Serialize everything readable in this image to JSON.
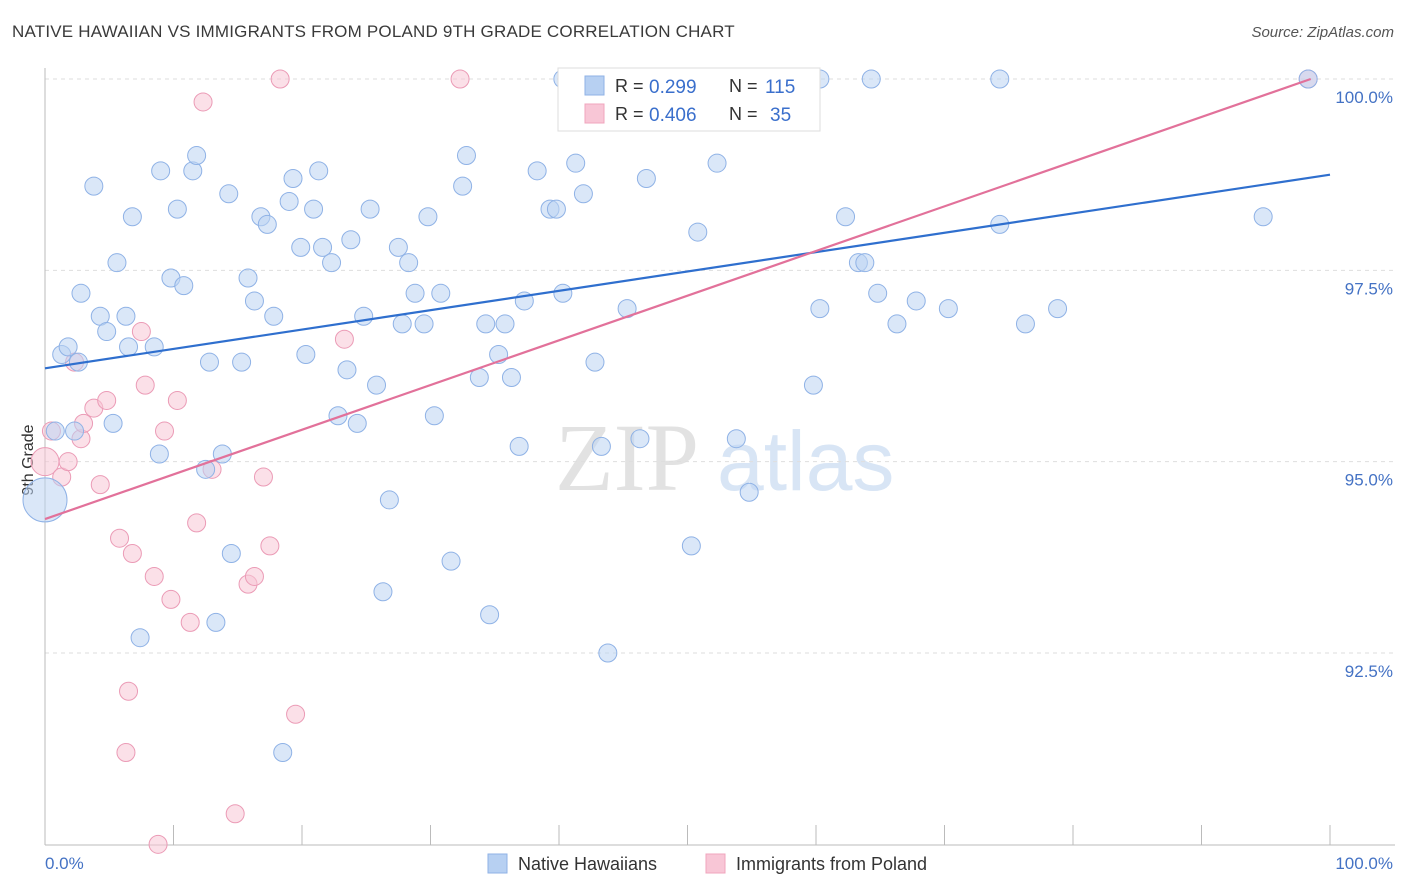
{
  "title": "NATIVE HAWAIIAN VS IMMIGRANTS FROM POLAND 9TH GRADE CORRELATION CHART",
  "source": "Source: ZipAtlas.com",
  "watermark": {
    "zip": "ZIP",
    "atlas": "atlas"
  },
  "legend_top": [
    {
      "r_label": "R =",
      "r_value": "0.299",
      "n_label": "N =",
      "n_value": "115"
    },
    {
      "r_label": "R =",
      "r_value": "0.406",
      "n_label": "N =",
      "n_value": "35"
    }
  ],
  "legend_bottom": [
    "Native Hawaiians",
    "Immigrants from Poland"
  ],
  "chart_data": {
    "type": "scatter",
    "xlabel": "",
    "ylabel": "9th Grade",
    "xlim": [
      0,
      100
    ],
    "ylim": [
      89.9,
      100.5
    ],
    "x_tick_labels": [
      "0.0%",
      "100.0%"
    ],
    "y_ticks": [
      100.0,
      97.5,
      95.0,
      92.5
    ],
    "y_tick_labels": [
      "100.0%",
      "97.5%",
      "95.0%",
      "92.5%"
    ],
    "grid": true,
    "colors": {
      "blue": "#9dbfec",
      "blue_line": "#2f6fce",
      "pink": "#f2a7bf",
      "pink_line": "#e2719a"
    },
    "series": [
      {
        "name": "Native Hawaiians",
        "color": "#9dbfec",
        "trend": {
          "x": [
            0,
            100
          ],
          "y": [
            96.22,
            98.75
          ]
        },
        "points": [
          [
            0.0,
            94.5,
            22
          ],
          [
            0.8,
            95.4,
            9
          ],
          [
            1.3,
            96.4,
            9
          ],
          [
            1.8,
            96.5,
            9
          ],
          [
            2.3,
            95.4,
            9
          ],
          [
            2.6,
            96.3,
            9
          ],
          [
            2.8,
            97.2,
            9
          ],
          [
            3.8,
            98.6,
            9
          ],
          [
            4.3,
            96.9,
            9
          ],
          [
            4.8,
            96.7,
            9
          ],
          [
            5.3,
            95.5,
            9
          ],
          [
            5.6,
            97.6,
            9
          ],
          [
            6.3,
            96.9,
            9
          ],
          [
            6.5,
            96.5,
            9
          ],
          [
            6.8,
            98.2,
            9
          ],
          [
            7.4,
            92.7,
            9
          ],
          [
            8.5,
            96.5,
            9
          ],
          [
            8.9,
            95.1,
            9
          ],
          [
            9.0,
            98.8,
            9
          ],
          [
            9.8,
            97.4,
            9
          ],
          [
            10.3,
            98.3,
            9
          ],
          [
            10.8,
            97.3,
            9
          ],
          [
            11.5,
            98.8,
            9
          ],
          [
            11.8,
            99.0,
            9
          ],
          [
            12.5,
            94.9,
            9
          ],
          [
            12.8,
            96.3,
            9
          ],
          [
            13.3,
            92.9,
            9
          ],
          [
            13.8,
            95.1,
            9
          ],
          [
            14.3,
            98.5,
            9
          ],
          [
            14.5,
            93.8,
            9
          ],
          [
            15.3,
            96.3,
            9
          ],
          [
            15.8,
            97.4,
            9
          ],
          [
            16.3,
            97.1,
            9
          ],
          [
            16.8,
            98.2,
            9
          ],
          [
            17.3,
            98.1,
            9
          ],
          [
            17.8,
            96.9,
            9
          ],
          [
            18.5,
            91.2,
            9
          ],
          [
            19.0,
            98.4,
            9
          ],
          [
            19.3,
            98.7,
            9
          ],
          [
            19.9,
            97.8,
            9
          ],
          [
            20.3,
            96.4,
            9
          ],
          [
            20.9,
            98.3,
            9
          ],
          [
            21.3,
            98.8,
            9
          ],
          [
            21.6,
            97.8,
            9
          ],
          [
            22.3,
            97.6,
            9
          ],
          [
            22.8,
            95.6,
            9
          ],
          [
            23.5,
            96.2,
            9
          ],
          [
            23.8,
            97.9,
            9
          ],
          [
            24.3,
            95.5,
            9
          ],
          [
            24.8,
            96.9,
            9
          ],
          [
            25.3,
            98.3,
            9
          ],
          [
            25.8,
            96.0,
            9
          ],
          [
            26.3,
            93.3,
            9
          ],
          [
            26.8,
            94.5,
            9
          ],
          [
            27.5,
            97.8,
            9
          ],
          [
            27.8,
            96.8,
            9
          ],
          [
            28.3,
            97.6,
            9
          ],
          [
            28.8,
            97.2,
            9
          ],
          [
            29.5,
            96.8,
            9
          ],
          [
            29.8,
            98.2,
            9
          ],
          [
            30.3,
            95.6,
            9
          ],
          [
            30.8,
            97.2,
            9
          ],
          [
            31.6,
            93.7,
            9
          ],
          [
            32.5,
            98.6,
            9
          ],
          [
            32.8,
            99.0,
            9
          ],
          [
            33.8,
            96.1,
            9
          ],
          [
            34.3,
            96.8,
            9
          ],
          [
            34.6,
            93.0,
            9
          ],
          [
            35.3,
            96.4,
            9
          ],
          [
            35.8,
            96.8,
            9
          ],
          [
            36.3,
            96.1,
            9
          ],
          [
            36.9,
            95.2,
            9
          ],
          [
            37.3,
            97.1,
            9
          ],
          [
            38.3,
            98.8,
            9
          ],
          [
            39.3,
            98.3,
            9
          ],
          [
            39.8,
            98.3,
            9
          ],
          [
            40.3,
            97.2,
            9
          ],
          [
            41.3,
            98.9,
            9
          ],
          [
            41.9,
            98.5,
            9
          ],
          [
            42.8,
            96.3,
            9
          ],
          [
            43.3,
            95.2,
            9
          ],
          [
            43.8,
            92.5,
            9
          ],
          [
            45.3,
            97.0,
            9
          ],
          [
            46.3,
            95.3,
            9
          ],
          [
            46.8,
            98.7,
            9
          ],
          [
            50.3,
            93.9,
            9
          ],
          [
            50.8,
            98.0,
            9
          ],
          [
            52.3,
            98.9,
            9
          ],
          [
            53.8,
            95.3,
            9
          ],
          [
            54.8,
            94.6,
            9
          ],
          [
            59.8,
            96.0,
            9
          ],
          [
            60.3,
            97.0,
            9
          ],
          [
            62.3,
            98.2,
            9
          ],
          [
            63.3,
            97.6,
            9
          ],
          [
            63.8,
            97.6,
            9
          ],
          [
            64.8,
            97.2,
            9
          ],
          [
            66.3,
            96.8,
            9
          ],
          [
            67.8,
            97.1,
            9
          ],
          [
            70.3,
            97.0,
            9
          ],
          [
            74.3,
            98.1,
            9
          ],
          [
            76.3,
            96.8,
            9
          ],
          [
            78.8,
            97.0,
            9
          ],
          [
            94.8,
            98.2,
            9
          ],
          [
            98.3,
            100.0,
            9
          ],
          [
            60.3,
            100.0,
            9
          ],
          [
            64.3,
            100.0,
            9
          ],
          [
            74.3,
            100.0,
            9
          ],
          [
            40.3,
            100.0,
            9
          ],
          [
            42.3,
            100.0,
            9
          ],
          [
            45.3,
            100.0,
            9
          ],
          [
            47.3,
            100.0,
            9
          ],
          [
            48.3,
            100.0,
            9
          ],
          [
            55.3,
            100.0,
            9
          ],
          [
            56.3,
            100.0,
            9
          ],
          [
            57.3,
            100.0,
            9
          ]
        ]
      },
      {
        "name": "Immigrants from Poland",
        "color": "#f2a7bf",
        "trend": {
          "x": [
            0,
            98.5
          ],
          "y": [
            94.25,
            100.0
          ]
        },
        "points": [
          [
            0.0,
            95.0,
            14
          ],
          [
            0.5,
            95.4,
            9
          ],
          [
            1.3,
            94.8,
            9
          ],
          [
            1.8,
            95.0,
            9
          ],
          [
            2.3,
            96.3,
            9
          ],
          [
            2.8,
            95.3,
            9
          ],
          [
            3.0,
            95.5,
            9
          ],
          [
            3.8,
            95.7,
            9
          ],
          [
            4.3,
            94.7,
            9
          ],
          [
            4.8,
            95.8,
            9
          ],
          [
            5.8,
            94.0,
            9
          ],
          [
            6.3,
            91.2,
            9
          ],
          [
            6.5,
            92.0,
            9
          ],
          [
            6.8,
            93.8,
            9
          ],
          [
            7.5,
            96.7,
            9
          ],
          [
            7.8,
            96.0,
            9
          ],
          [
            8.5,
            93.5,
            9
          ],
          [
            8.8,
            90.0,
            9
          ],
          [
            9.3,
            95.4,
            9
          ],
          [
            9.8,
            93.2,
            9
          ],
          [
            10.3,
            95.8,
            9
          ],
          [
            11.3,
            92.9,
            9
          ],
          [
            11.8,
            94.2,
            9
          ],
          [
            12.3,
            99.7,
            9
          ],
          [
            13.0,
            94.9,
            9
          ],
          [
            14.8,
            90.4,
            9
          ],
          [
            15.8,
            93.4,
            9
          ],
          [
            16.3,
            93.5,
            9
          ],
          [
            17.0,
            94.8,
            9
          ],
          [
            17.5,
            93.9,
            9
          ],
          [
            18.3,
            100.0,
            9
          ],
          [
            19.5,
            91.7,
            9
          ],
          [
            23.3,
            96.6,
            9
          ],
          [
            32.3,
            100.0,
            9
          ],
          [
            98.3,
            100.0,
            9
          ]
        ]
      }
    ]
  }
}
